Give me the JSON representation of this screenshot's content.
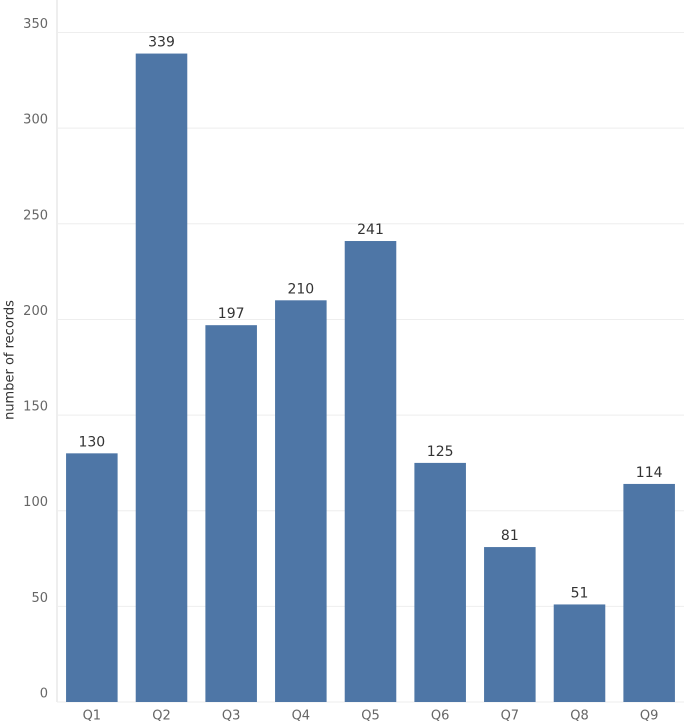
{
  "chart_data": {
    "type": "bar",
    "y_label": "number of records",
    "categories": [
      "Q1",
      "Q2",
      "Q3",
      "Q4",
      "Q5",
      "Q6",
      "Q7",
      "Q8",
      "Q9"
    ],
    "values": [
      130,
      339,
      197,
      210,
      241,
      125,
      81,
      51,
      114
    ],
    "color": "#4e76a6",
    "ylim": [
      0,
      367
    ],
    "yticks": [
      0,
      50,
      100,
      150,
      200,
      250,
      300,
      350
    ],
    "grid": true
  }
}
